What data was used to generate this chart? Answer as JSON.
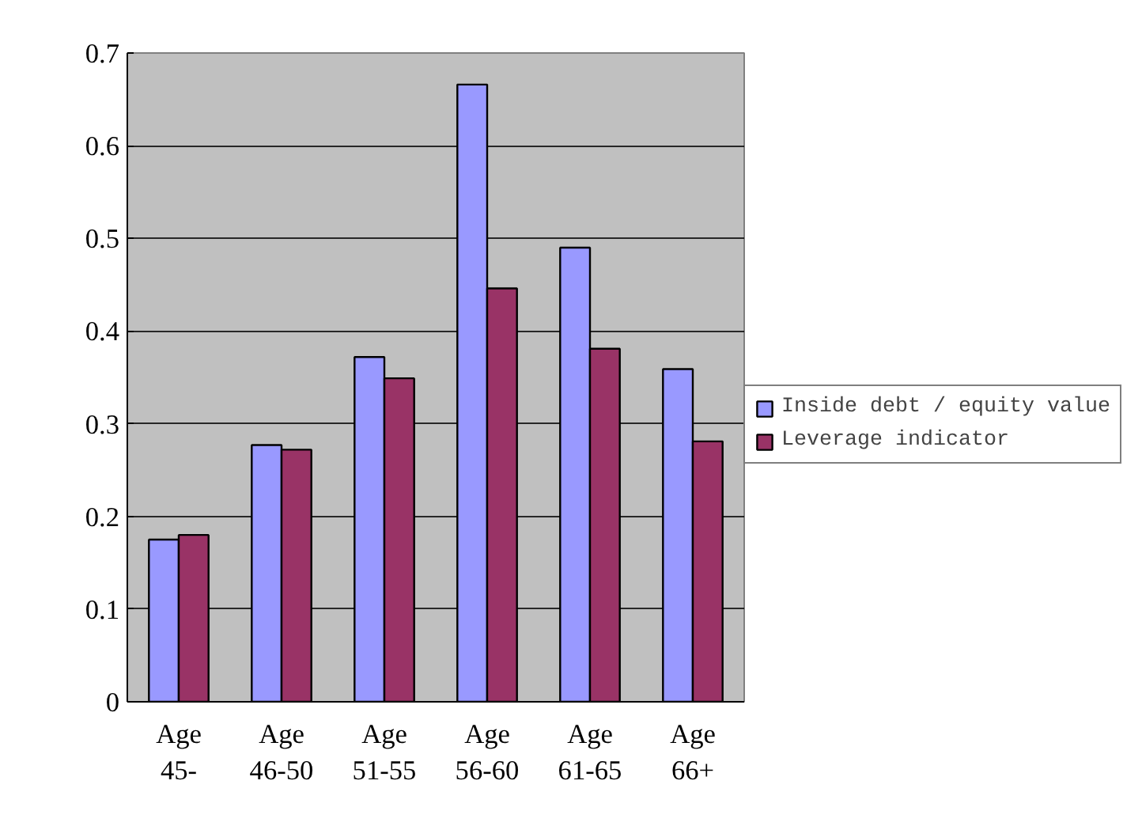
{
  "chart_data": {
    "type": "bar",
    "categories": [
      "Age 45-",
      "Age 46-50",
      "Age 51-55",
      "Age 56-60",
      "Age 61-65",
      "Age 66+"
    ],
    "series": [
      {
        "name": "Inside debt / equity value",
        "color": "#9999ff",
        "values": [
          0.175,
          0.277,
          0.372,
          0.666,
          0.49,
          0.359
        ]
      },
      {
        "name": "Leverage indicator",
        "color": "#993366",
        "values": [
          0.18,
          0.272,
          0.349,
          0.446,
          0.381,
          0.281
        ]
      }
    ],
    "ylim": [
      0,
      0.7
    ],
    "yticks": [
      0,
      0.1,
      0.2,
      0.3,
      0.4,
      0.5,
      0.6,
      0.7
    ],
    "grid": "y",
    "legend": "right"
  }
}
